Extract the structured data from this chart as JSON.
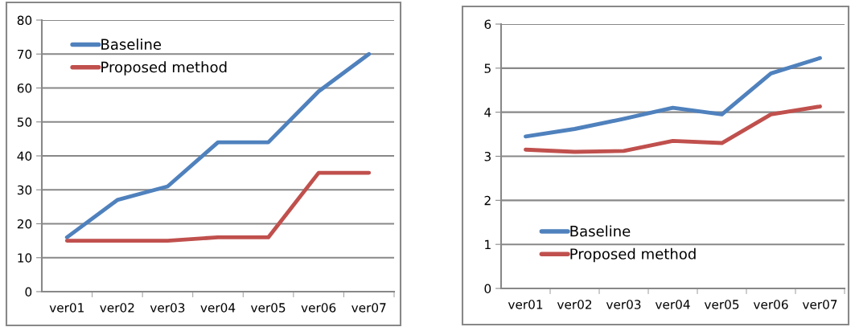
{
  "chart_data": [
    {
      "type": "line",
      "categories": [
        "ver01",
        "ver02",
        "ver03",
        "ver04",
        "ver05",
        "ver06",
        "ver07"
      ],
      "ylim": [
        0,
        80
      ],
      "yticks": [
        0,
        10,
        20,
        30,
        40,
        50,
        60,
        70,
        80
      ],
      "grid": "y",
      "legend": "top left",
      "marker": "none",
      "line_style": "solid",
      "series": [
        {
          "name": "Baseline",
          "color": "#4f81bd",
          "values": [
            16,
            27,
            31,
            44,
            44,
            59,
            70
          ]
        },
        {
          "name": "Proposed method",
          "color": "#c0504d",
          "values": [
            15,
            15,
            15,
            16,
            16,
            35,
            35
          ]
        }
      ]
    },
    {
      "type": "line",
      "categories": [
        "ver01",
        "ver02",
        "ver03",
        "ver04",
        "ver05",
        "ver06",
        "ver07"
      ],
      "ylim": [
        0,
        6
      ],
      "yticks": [
        0,
        1,
        2,
        3,
        4,
        5,
        6
      ],
      "grid": "y",
      "legend": "bottom left",
      "marker": "none",
      "line_style": "solid",
      "series": [
        {
          "name": "Baseline",
          "color": "#4f81bd",
          "values": [
            3.45,
            3.62,
            3.85,
            4.1,
            3.95,
            4.88,
            5.23
          ]
        },
        {
          "name": "Proposed method",
          "color": "#c0504d",
          "values": [
            3.15,
            3.1,
            3.12,
            3.35,
            3.3,
            3.95,
            4.13
          ]
        }
      ]
    }
  ]
}
